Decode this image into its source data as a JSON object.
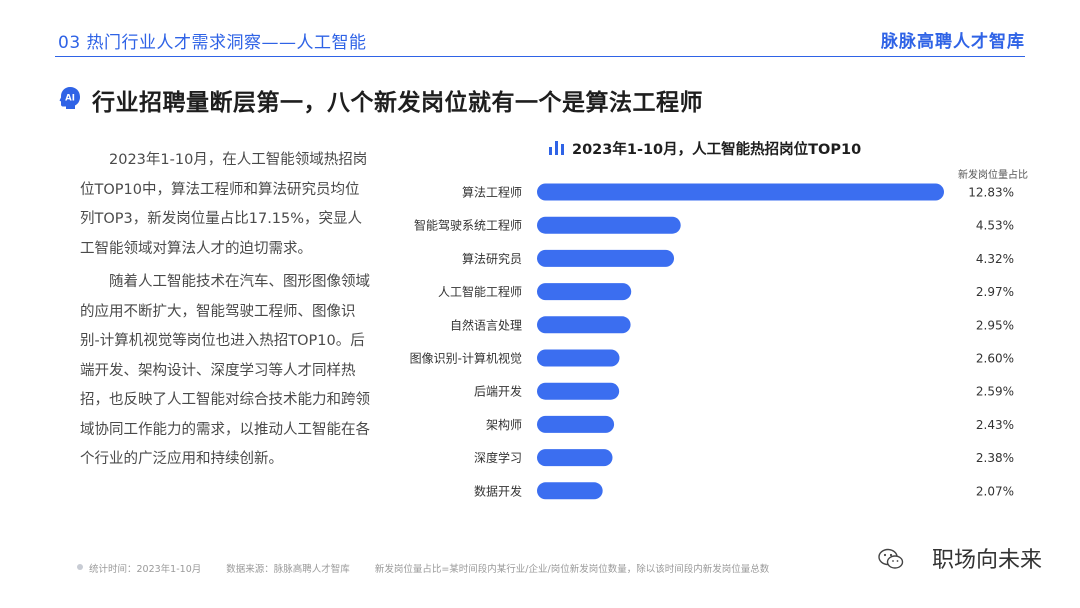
{
  "header": {
    "title": "03 热门行业人才需求洞察——人工智能",
    "brand": "脉脉高聘人才智库"
  },
  "headline": {
    "badge": "AI",
    "text": "行业招聘量断层第一，八个新发岗位就有一个是算法工程师"
  },
  "body": {
    "paragraphs": [
      "2023年1-10月，在人工智能领域热招岗位TOP10中，算法工程师和算法研究员均位列TOP3，新发岗位量占比17.15%，突显人工智能领域对算法人才的迫切需求。",
      "随着人工智能技术在汽车、图形图像领域的应用不断扩大，智能驾驶工程师、图像识别-计算机视觉等岗位也进入热招TOP10。后端开发、架构设计、深度学习等人才同样热招，也反映了人工智能对综合技术能力和跨领域协同工作能力的需求，以推动人工智能在各个行业的广泛应用和持续创新。"
    ]
  },
  "chart_data": {
    "type": "bar",
    "orientation": "horizontal",
    "title": "2023年1-10月，人工智能热招岗位TOP10",
    "value_header": "新发岗位量占比",
    "categories": [
      "算法工程师",
      "智能驾驶系统工程师",
      "算法研究员",
      "人工智能工程师",
      "自然语言处理",
      "图像识别-计算机视觉",
      "后端开发",
      "架构师",
      "深度学习",
      "数据开发"
    ],
    "values": [
      12.83,
      4.53,
      4.32,
      2.97,
      2.95,
      2.6,
      2.59,
      2.43,
      2.38,
      2.07
    ],
    "value_labels": [
      "12.83%",
      "4.53%",
      "4.32%",
      "2.97%",
      "2.95%",
      "2.60%",
      "2.59%",
      "2.43%",
      "2.38%",
      "2.07%"
    ],
    "bar_color": "#3b6ef0",
    "grid": false
  },
  "footer": {
    "stat_time": "统计时间：2023年1-10月",
    "source": "数据来源：脉脉高聘人才智库",
    "note": "新发岗位量占比=某时间段内某行业/企业/岗位新发岗位数量，除以该时间段内新发岗位量总数"
  },
  "watermark": "职场向未来"
}
